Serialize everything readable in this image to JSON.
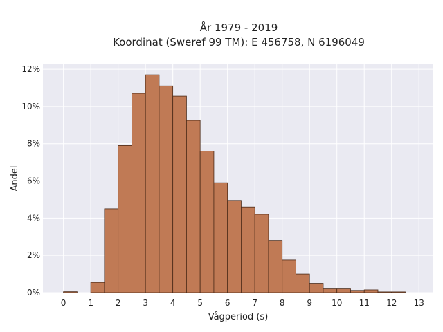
{
  "chart_data": {
    "type": "bar",
    "title": "År 1979 - 2019",
    "subtitle": "Koordinat (Sweref 99 TM): E 456758, N 6196049",
    "xlabel": "Vågperiod (s)",
    "ylabel": "Andel",
    "x_ticks": [
      "0",
      "1",
      "2",
      "3",
      "4",
      "5",
      "6",
      "7",
      "8",
      "9",
      "10",
      "11",
      "12",
      "13"
    ],
    "y_ticks": [
      "0%",
      "2%",
      "4%",
      "6%",
      "8%",
      "10%",
      "12%"
    ],
    "xlim": [
      -0.75,
      13.5
    ],
    "ylim": [
      0,
      12.3
    ],
    "bin_width": 0.5,
    "bins": [
      {
        "start": 0.0,
        "value": 0.05
      },
      {
        "start": 0.5,
        "value": 0.0
      },
      {
        "start": 1.0,
        "value": 0.55
      },
      {
        "start": 1.5,
        "value": 4.5
      },
      {
        "start": 2.0,
        "value": 7.9
      },
      {
        "start": 2.5,
        "value": 10.7
      },
      {
        "start": 3.0,
        "value": 11.7
      },
      {
        "start": 3.5,
        "value": 11.1
      },
      {
        "start": 4.0,
        "value": 10.55
      },
      {
        "start": 4.5,
        "value": 9.25
      },
      {
        "start": 5.0,
        "value": 7.6
      },
      {
        "start": 5.5,
        "value": 5.9
      },
      {
        "start": 6.0,
        "value": 4.95
      },
      {
        "start": 6.5,
        "value": 4.6
      },
      {
        "start": 7.0,
        "value": 4.2
      },
      {
        "start": 7.5,
        "value": 2.8
      },
      {
        "start": 8.0,
        "value": 1.75
      },
      {
        "start": 8.5,
        "value": 1.0
      },
      {
        "start": 9.0,
        "value": 0.5
      },
      {
        "start": 9.5,
        "value": 0.2
      },
      {
        "start": 10.0,
        "value": 0.2
      },
      {
        "start": 10.5,
        "value": 0.12
      },
      {
        "start": 11.0,
        "value": 0.15
      },
      {
        "start": 11.5,
        "value": 0.04
      },
      {
        "start": 12.0,
        "value": 0.04
      }
    ],
    "grid": true,
    "colors": {
      "bar_fill": "#c07a55",
      "bar_edge": "#4a2a18",
      "plot_bg": "#eaeaf2",
      "grid": "#ffffff"
    }
  }
}
